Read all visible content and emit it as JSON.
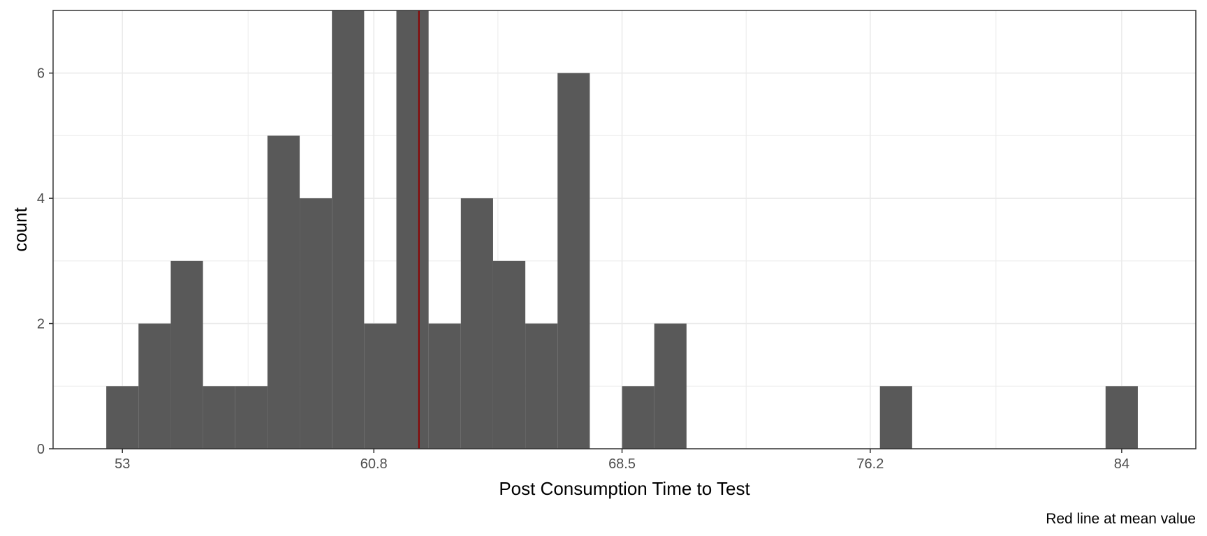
{
  "chart_data": {
    "type": "bar",
    "xlabel": "Post Consumption Time to Test",
    "ylabel": "count",
    "caption": "Red line at mean value",
    "x_ticks": [
      "53",
      "60.8",
      "68.5",
      "76.2",
      "84"
    ],
    "x_tick_values": [
      53,
      60.8,
      68.5,
      76.2,
      84
    ],
    "y_ticks": [
      "0",
      "2",
      "4",
      "6"
    ],
    "y_tick_values": [
      0,
      2,
      4,
      6
    ],
    "xlim": [
      50.85,
      86.3
    ],
    "ylim": [
      0,
      7
    ],
    "bins": [
      {
        "x0": 52.5,
        "x1": 53.5,
        "count": 1
      },
      {
        "x0": 53.5,
        "x1": 54.5,
        "count": 2
      },
      {
        "x0": 54.5,
        "x1": 55.5,
        "count": 3
      },
      {
        "x0": 55.5,
        "x1": 56.5,
        "count": 1
      },
      {
        "x0": 56.5,
        "x1": 57.5,
        "count": 1
      },
      {
        "x0": 57.5,
        "x1": 58.5,
        "count": 5
      },
      {
        "x0": 58.5,
        "x1": 59.5,
        "count": 4
      },
      {
        "x0": 59.5,
        "x1": 60.5,
        "count": 7
      },
      {
        "x0": 60.5,
        "x1": 61.5,
        "count": 2
      },
      {
        "x0": 61.5,
        "x1": 62.5,
        "count": 7
      },
      {
        "x0": 62.5,
        "x1": 63.5,
        "count": 2
      },
      {
        "x0": 63.5,
        "x1": 64.5,
        "count": 4
      },
      {
        "x0": 64.5,
        "x1": 65.5,
        "count": 3
      },
      {
        "x0": 65.5,
        "x1": 66.5,
        "count": 2
      },
      {
        "x0": 66.5,
        "x1": 67.5,
        "count": 6
      },
      {
        "x0": 68.5,
        "x1": 69.5,
        "count": 1
      },
      {
        "x0": 69.5,
        "x1": 70.5,
        "count": 2
      },
      {
        "x0": 76.5,
        "x1": 77.5,
        "count": 1
      },
      {
        "x0": 83.5,
        "x1": 84.5,
        "count": 1
      }
    ],
    "mean_value": 62.2,
    "grid": true,
    "colors": {
      "bar": "#595959",
      "mean_line": "#8b0000",
      "grid": "#ebebeb",
      "panel_border": "#333333",
      "tick_text": "#4d4d4d",
      "title_text": "#000000"
    }
  }
}
